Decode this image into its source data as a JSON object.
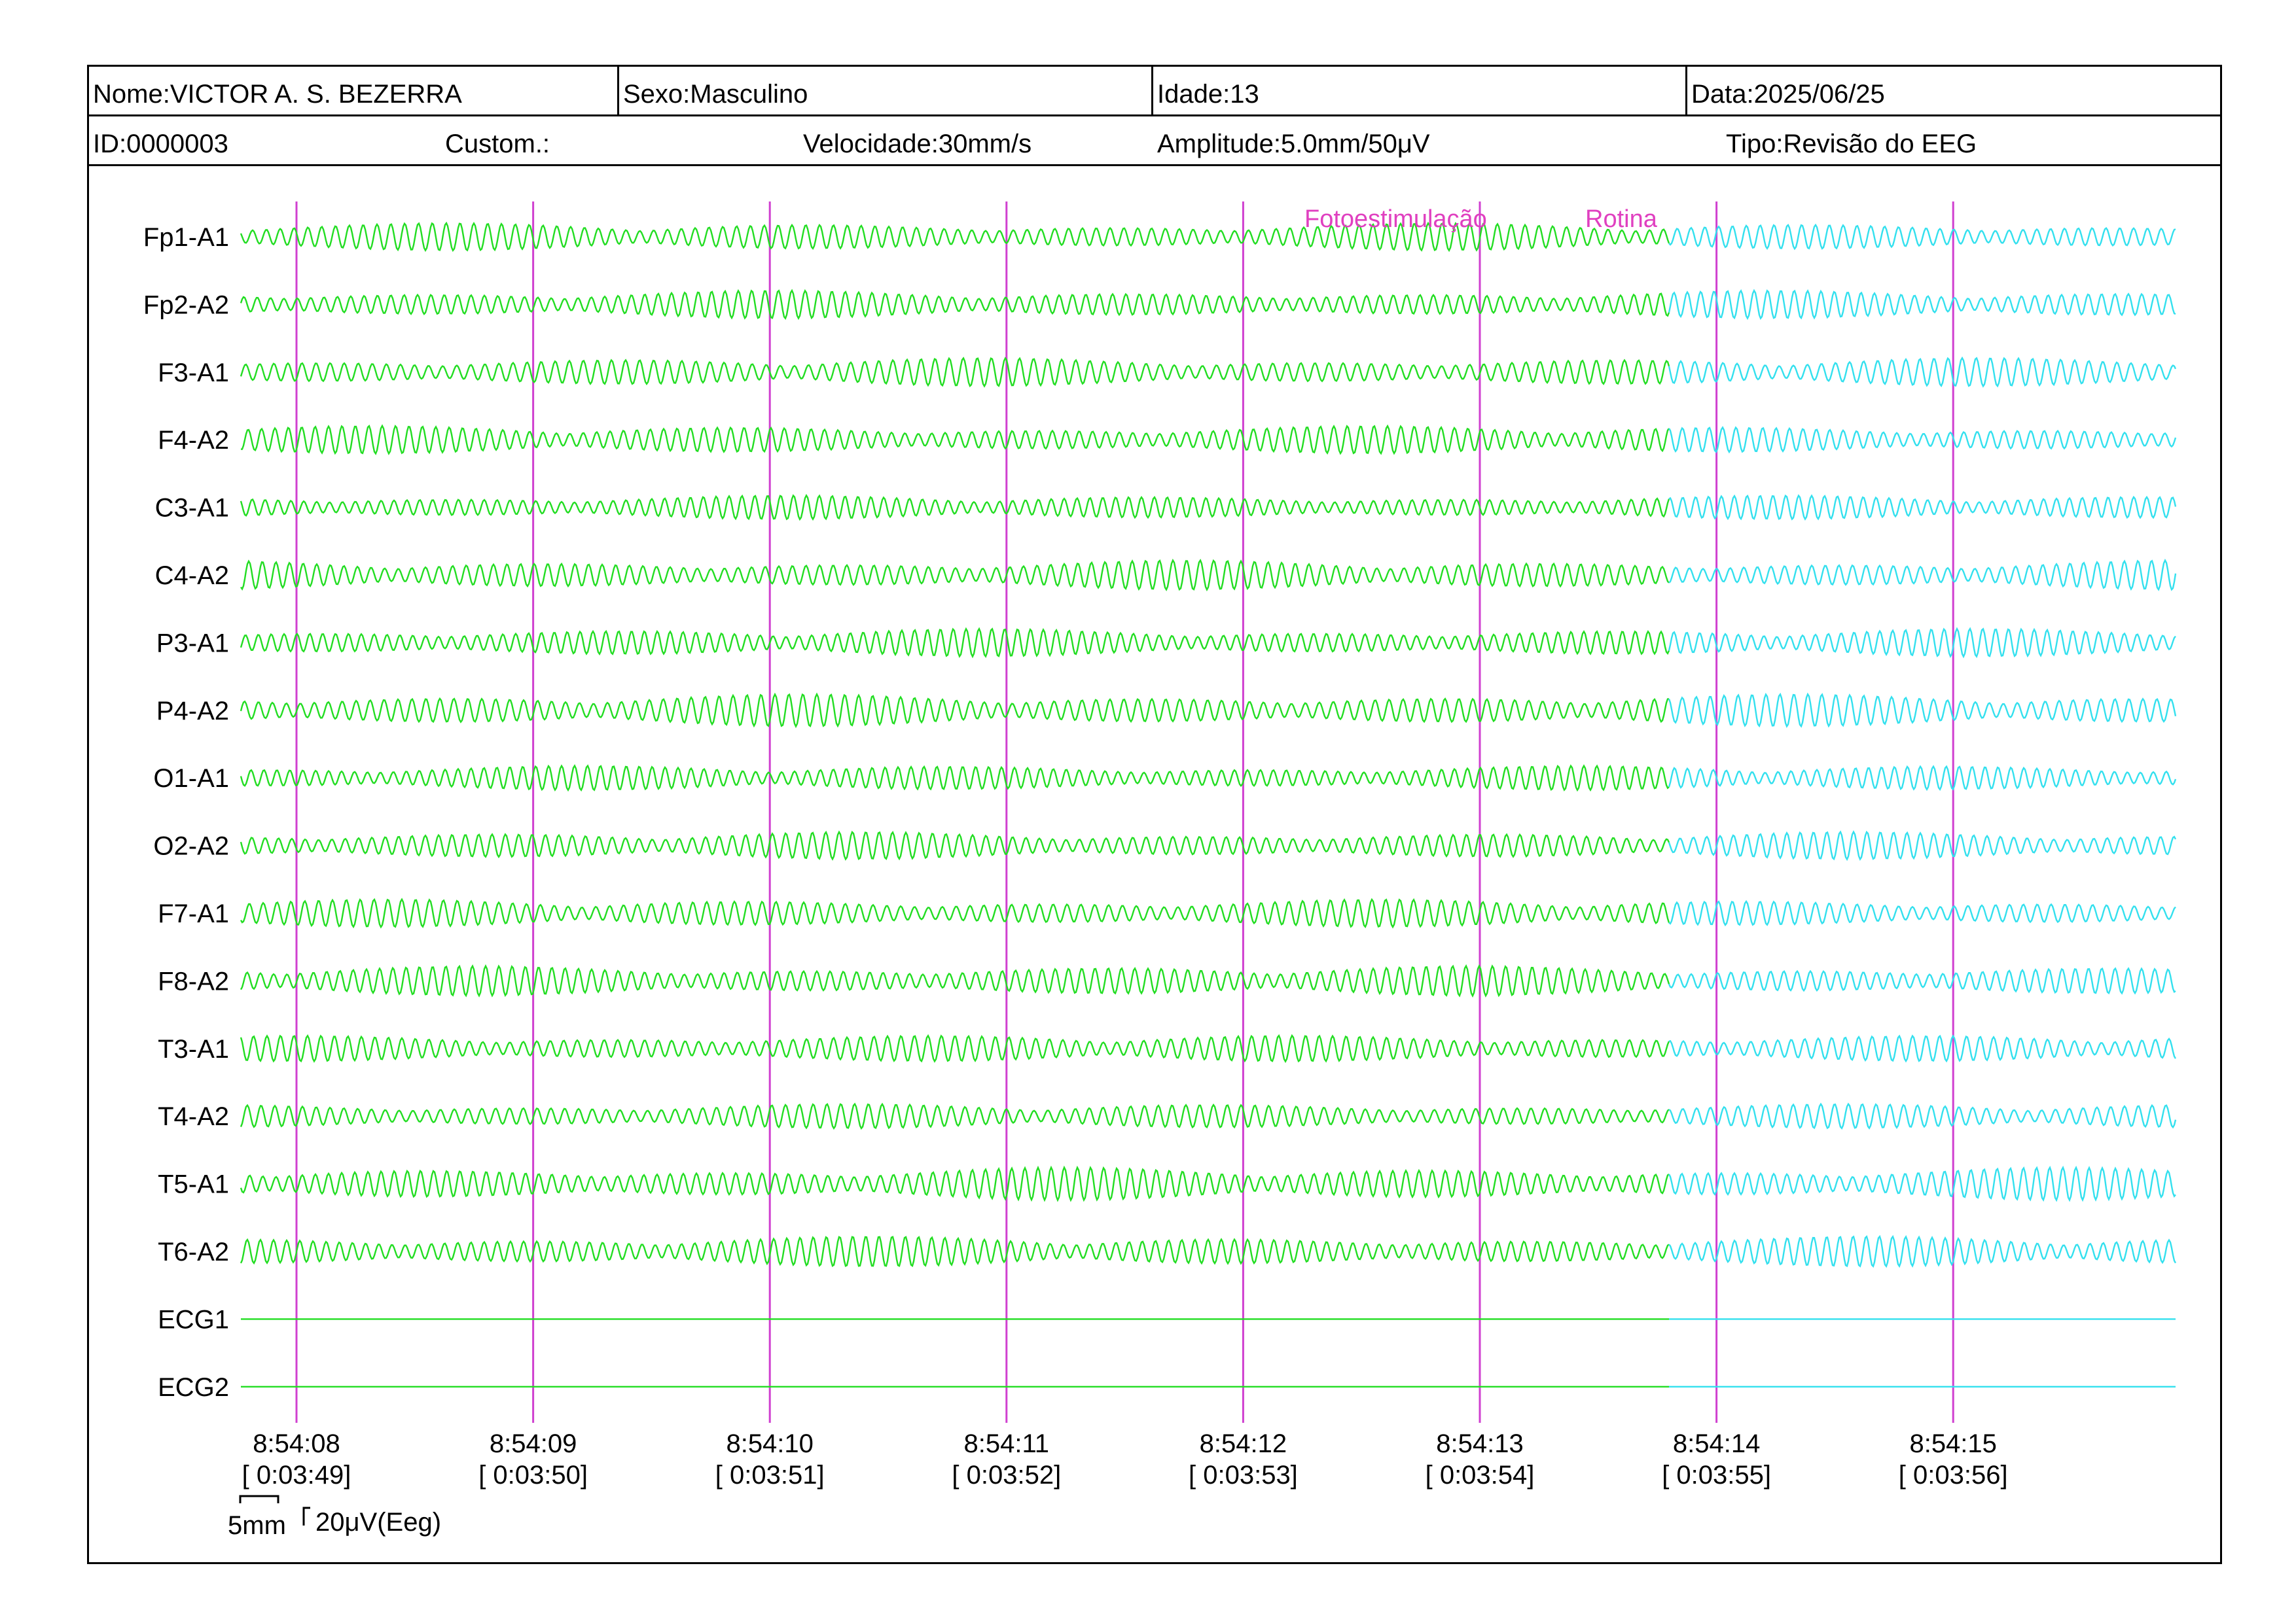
{
  "header": {
    "nome": "Nome:VICTOR A. S. BEZERRA",
    "sexo": "Sexo:Masculino",
    "idade": "Idade:13",
    "data": "Data:2025/06/25",
    "id": "ID:0000003",
    "custom": "Custom.:",
    "velocidade": "Velocidade:30mm/s",
    "amplitude": "Amplitude:5.0mm/50μV",
    "tipo": "Tipo:Revisão do EEG"
  },
  "channels": [
    "Fp1-A1",
    "Fp2-A2",
    "F3-A1",
    "F4-A2",
    "C3-A1",
    "C4-A2",
    "P3-A1",
    "P4-A2",
    "O1-A1",
    "O2-A2",
    "F7-A1",
    "F8-A2",
    "T3-A1",
    "T4-A2",
    "T5-A1",
    "T6-A2",
    "ECG1",
    "ECG2"
  ],
  "time_marks": [
    {
      "clock": "8:54:08",
      "elapsed": "[ 0:03:49]"
    },
    {
      "clock": "8:54:09",
      "elapsed": "[ 0:03:50]"
    },
    {
      "clock": "8:54:10",
      "elapsed": "[ 0:03:51]"
    },
    {
      "clock": "8:54:11",
      "elapsed": "[ 0:03:52]"
    },
    {
      "clock": "8:54:12",
      "elapsed": "[ 0:03:53]"
    },
    {
      "clock": "8:54:13",
      "elapsed": "[ 0:03:54]"
    },
    {
      "clock": "8:54:14",
      "elapsed": "[ 0:03:55]"
    },
    {
      "clock": "8:54:15",
      "elapsed": "[ 0:03:56]"
    }
  ],
  "events": [
    "Fotoestimulação",
    "Rotina"
  ],
  "scale": {
    "time": "5mm",
    "amplitude": "20μV(Eeg)"
  },
  "colors": {
    "trace_primary": "#22dd22",
    "trace_recent": "#33e0ee",
    "marker": "#d040d0",
    "event_text": "#e040c0"
  }
}
